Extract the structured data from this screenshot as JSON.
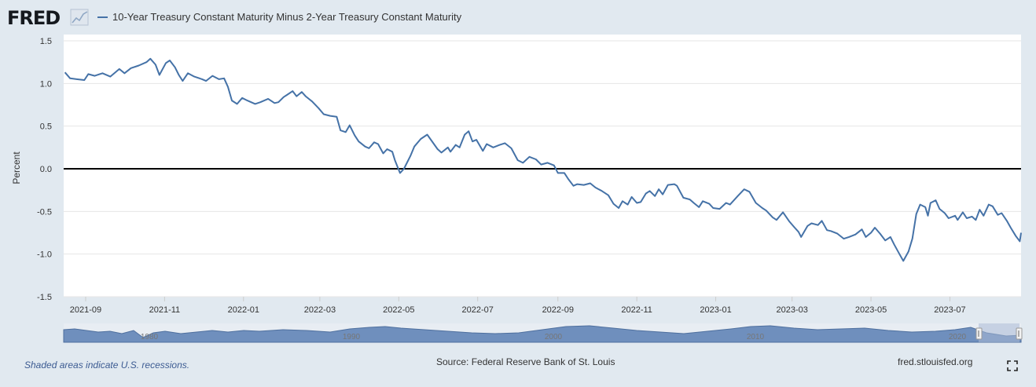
{
  "header": {
    "logo_text": "FRED",
    "legend_label": "10-Year Treasury Constant Maturity Minus 2-Year Treasury Constant Maturity"
  },
  "footer": {
    "recession_note": "Shaded areas indicate U.S. recessions.",
    "source": "Source: Federal Reserve Bank of St. Louis",
    "url": "fred.stlouisfed.org"
  },
  "navigator": {
    "labels": [
      "1980",
      "1990",
      "2000",
      "2010",
      "2020"
    ]
  },
  "colors": {
    "background": "#e1e9f0",
    "plot_background": "#ffffff",
    "series": "#4572a7",
    "zero_line": "#000000",
    "grid": "#e6e6e6",
    "navigator_fill": "#6f8fbd",
    "navigator_mask": "#a9bad6"
  },
  "chart_data": {
    "type": "line",
    "title": "10-Year Treasury Constant Maturity Minus 2-Year Treasury Constant Maturity",
    "xlabel": "",
    "ylabel": "Percent",
    "ylim": [
      -1.5,
      1.5
    ],
    "yticks": [
      1.5,
      1.0,
      0.5,
      0.0,
      -0.5,
      -1.0,
      -1.5
    ],
    "ytick_labels": [
      "1.5",
      "1.0",
      "0.5",
      "0.0",
      "-0.5",
      "-1.0",
      "-1.5"
    ],
    "xlim": [
      "2021-08-15",
      "2023-08-25"
    ],
    "xticks": [
      "2021-09-01",
      "2021-11-01",
      "2022-01-01",
      "2022-03-01",
      "2022-05-01",
      "2022-07-01",
      "2022-09-01",
      "2022-11-01",
      "2023-01-01",
      "2023-03-01",
      "2023-05-01",
      "2023-07-01"
    ],
    "xtick_labels": [
      "2021-09",
      "2021-11",
      "2022-01",
      "2022-03",
      "2022-05",
      "2022-07",
      "2022-09",
      "2022-11",
      "2023-01",
      "2023-03",
      "2023-05",
      "2023-07"
    ],
    "reference_line": 0,
    "series": [
      {
        "name": "10-Year Treasury Constant Maturity Minus 2-Year Treasury Constant Maturity",
        "points": [
          [
            "2021-08-16",
            1.13
          ],
          [
            "2021-08-20",
            1.06
          ],
          [
            "2021-08-25",
            1.05
          ],
          [
            "2021-08-31",
            1.04
          ],
          [
            "2021-09-03",
            1.11
          ],
          [
            "2021-09-08",
            1.09
          ],
          [
            "2021-09-14",
            1.12
          ],
          [
            "2021-09-20",
            1.08
          ],
          [
            "2021-09-27",
            1.17
          ],
          [
            "2021-10-01",
            1.12
          ],
          [
            "2021-10-06",
            1.18
          ],
          [
            "2021-10-12",
            1.21
          ],
          [
            "2021-10-18",
            1.25
          ],
          [
            "2021-10-21",
            1.29
          ],
          [
            "2021-10-25",
            1.22
          ],
          [
            "2021-10-28",
            1.1
          ],
          [
            "2021-11-02",
            1.24
          ],
          [
            "2021-11-05",
            1.27
          ],
          [
            "2021-11-09",
            1.19
          ],
          [
            "2021-11-12",
            1.1
          ],
          [
            "2021-11-15",
            1.03
          ],
          [
            "2021-11-19",
            1.12
          ],
          [
            "2021-11-24",
            1.08
          ],
          [
            "2021-11-30",
            1.05
          ],
          [
            "2021-12-03",
            1.03
          ],
          [
            "2021-12-08",
            1.09
          ],
          [
            "2021-12-13",
            1.05
          ],
          [
            "2021-12-17",
            1.06
          ],
          [
            "2021-12-20",
            0.96
          ],
          [
            "2021-12-23",
            0.8
          ],
          [
            "2021-12-27",
            0.76
          ],
          [
            "2021-12-31",
            0.83
          ],
          [
            "2022-01-04",
            0.8
          ],
          [
            "2022-01-10",
            0.76
          ],
          [
            "2022-01-14",
            0.78
          ],
          [
            "2022-01-20",
            0.82
          ],
          [
            "2022-01-25",
            0.77
          ],
          [
            "2022-01-28",
            0.78
          ],
          [
            "2022-02-01",
            0.84
          ],
          [
            "2022-02-04",
            0.87
          ],
          [
            "2022-02-08",
            0.91
          ],
          [
            "2022-02-11",
            0.85
          ],
          [
            "2022-02-15",
            0.9
          ],
          [
            "2022-02-18",
            0.85
          ],
          [
            "2022-02-23",
            0.79
          ],
          [
            "2022-02-28",
            0.71
          ],
          [
            "2022-03-04",
            0.64
          ],
          [
            "2022-03-09",
            0.62
          ],
          [
            "2022-03-14",
            0.61
          ],
          [
            "2022-03-17",
            0.45
          ],
          [
            "2022-03-21",
            0.43
          ],
          [
            "2022-03-24",
            0.51
          ],
          [
            "2022-03-28",
            0.39
          ],
          [
            "2022-03-31",
            0.32
          ],
          [
            "2022-04-05",
            0.26
          ],
          [
            "2022-04-08",
            0.24
          ],
          [
            "2022-04-12",
            0.31
          ],
          [
            "2022-04-15",
            0.29
          ],
          [
            "2022-04-19",
            0.18
          ],
          [
            "2022-04-22",
            0.23
          ],
          [
            "2022-04-26",
            0.2
          ],
          [
            "2022-04-28",
            0.1
          ],
          [
            "2022-05-02",
            -0.05
          ],
          [
            "2022-05-05",
            0.0
          ],
          [
            "2022-05-10",
            0.15
          ],
          [
            "2022-05-13",
            0.26
          ],
          [
            "2022-05-18",
            0.35
          ],
          [
            "2022-05-23",
            0.4
          ],
          [
            "2022-05-31",
            0.23
          ],
          [
            "2022-06-03",
            0.19
          ],
          [
            "2022-06-08",
            0.25
          ],
          [
            "2022-06-10",
            0.2
          ],
          [
            "2022-06-14",
            0.28
          ],
          [
            "2022-06-17",
            0.25
          ],
          [
            "2022-06-21",
            0.4
          ],
          [
            "2022-06-24",
            0.44
          ],
          [
            "2022-06-27",
            0.32
          ],
          [
            "2022-06-30",
            0.34
          ],
          [
            "2022-07-05",
            0.21
          ],
          [
            "2022-07-08",
            0.29
          ],
          [
            "2022-07-13",
            0.25
          ],
          [
            "2022-07-18",
            0.28
          ],
          [
            "2022-07-22",
            0.3
          ],
          [
            "2022-07-27",
            0.24
          ],
          [
            "2022-08-01",
            0.1
          ],
          [
            "2022-08-05",
            0.07
          ],
          [
            "2022-08-10",
            0.14
          ],
          [
            "2022-08-15",
            0.11
          ],
          [
            "2022-08-19",
            0.05
          ],
          [
            "2022-08-24",
            0.07
          ],
          [
            "2022-08-29",
            0.04
          ],
          [
            "2022-09-01",
            -0.05
          ],
          [
            "2022-09-06",
            -0.05
          ],
          [
            "2022-09-09",
            -0.12
          ],
          [
            "2022-09-13",
            -0.2
          ],
          [
            "2022-09-16",
            -0.18
          ],
          [
            "2022-09-21",
            -0.19
          ],
          [
            "2022-09-26",
            -0.17
          ],
          [
            "2022-09-30",
            -0.22
          ],
          [
            "2022-10-05",
            -0.26
          ],
          [
            "2022-10-10",
            -0.31
          ],
          [
            "2022-10-14",
            -0.41
          ],
          [
            "2022-10-18",
            -0.46
          ],
          [
            "2022-10-21",
            -0.38
          ],
          [
            "2022-10-25",
            -0.42
          ],
          [
            "2022-10-28",
            -0.33
          ],
          [
            "2022-11-01",
            -0.4
          ],
          [
            "2022-11-04",
            -0.39
          ],
          [
            "2022-11-08",
            -0.29
          ],
          [
            "2022-11-11",
            -0.26
          ],
          [
            "2022-11-15",
            -0.32
          ],
          [
            "2022-11-18",
            -0.24
          ],
          [
            "2022-11-21",
            -0.3
          ],
          [
            "2022-11-25",
            -0.19
          ],
          [
            "2022-11-30",
            -0.18
          ],
          [
            "2022-12-02",
            -0.2
          ],
          [
            "2022-12-07",
            -0.34
          ],
          [
            "2022-12-12",
            -0.36
          ],
          [
            "2022-12-15",
            -0.4
          ],
          [
            "2022-12-19",
            -0.45
          ],
          [
            "2022-12-22",
            -0.38
          ],
          [
            "2022-12-27",
            -0.41
          ],
          [
            "2022-12-30",
            -0.46
          ],
          [
            "2023-01-04",
            -0.47
          ],
          [
            "2023-01-09",
            -0.4
          ],
          [
            "2023-01-12",
            -0.42
          ],
          [
            "2023-01-18",
            -0.32
          ],
          [
            "2023-01-23",
            -0.24
          ],
          [
            "2023-01-27",
            -0.27
          ],
          [
            "2023-02-01",
            -0.4
          ],
          [
            "2023-02-06",
            -0.46
          ],
          [
            "2023-02-09",
            -0.49
          ],
          [
            "2023-02-14",
            -0.57
          ],
          [
            "2023-02-17",
            -0.6
          ],
          [
            "2023-02-22",
            -0.51
          ],
          [
            "2023-02-27",
            -0.62
          ],
          [
            "2023-03-03",
            -0.69
          ],
          [
            "2023-03-06",
            -0.74
          ],
          [
            "2023-03-08",
            -0.8
          ],
          [
            "2023-03-13",
            -0.67
          ],
          [
            "2023-03-16",
            -0.64
          ],
          [
            "2023-03-21",
            -0.66
          ],
          [
            "2023-03-24",
            -0.61
          ],
          [
            "2023-03-28",
            -0.72
          ],
          [
            "2023-03-31",
            -0.73
          ],
          [
            "2023-04-05",
            -0.76
          ],
          [
            "2023-04-10",
            -0.82
          ],
          [
            "2023-04-14",
            -0.8
          ],
          [
            "2023-04-19",
            -0.77
          ],
          [
            "2023-04-24",
            -0.71
          ],
          [
            "2023-04-27",
            -0.8
          ],
          [
            "2023-05-01",
            -0.75
          ],
          [
            "2023-05-04",
            -0.69
          ],
          [
            "2023-05-08",
            -0.76
          ],
          [
            "2023-05-12",
            -0.84
          ],
          [
            "2023-05-16",
            -0.8
          ],
          [
            "2023-05-19",
            -0.89
          ],
          [
            "2023-05-23",
            -1.0
          ],
          [
            "2023-05-26",
            -1.08
          ],
          [
            "2023-05-30",
            -0.97
          ],
          [
            "2023-06-02",
            -0.82
          ],
          [
            "2023-06-05",
            -0.53
          ],
          [
            "2023-06-08",
            -0.42
          ],
          [
            "2023-06-12",
            -0.45
          ],
          [
            "2023-06-14",
            -0.55
          ],
          [
            "2023-06-16",
            -0.4
          ],
          [
            "2023-06-20",
            -0.37
          ],
          [
            "2023-06-23",
            -0.47
          ],
          [
            "2023-06-27",
            -0.52
          ],
          [
            "2023-06-30",
            -0.58
          ],
          [
            "2023-07-05",
            -0.55
          ],
          [
            "2023-07-07",
            -0.6
          ],
          [
            "2023-07-11",
            -0.51
          ],
          [
            "2023-07-14",
            -0.58
          ],
          [
            "2023-07-18",
            -0.56
          ],
          [
            "2023-07-21",
            -0.6
          ],
          [
            "2023-07-24",
            -0.48
          ],
          [
            "2023-07-27",
            -0.55
          ],
          [
            "2023-07-31",
            -0.42
          ],
          [
            "2023-08-03",
            -0.44
          ],
          [
            "2023-08-07",
            -0.54
          ],
          [
            "2023-08-10",
            -0.52
          ],
          [
            "2023-08-14",
            -0.61
          ],
          [
            "2023-08-17",
            -0.69
          ],
          [
            "2023-08-21",
            -0.79
          ],
          [
            "2023-08-24",
            -0.85
          ],
          [
            "2023-08-25",
            -0.75
          ]
        ]
      }
    ]
  }
}
